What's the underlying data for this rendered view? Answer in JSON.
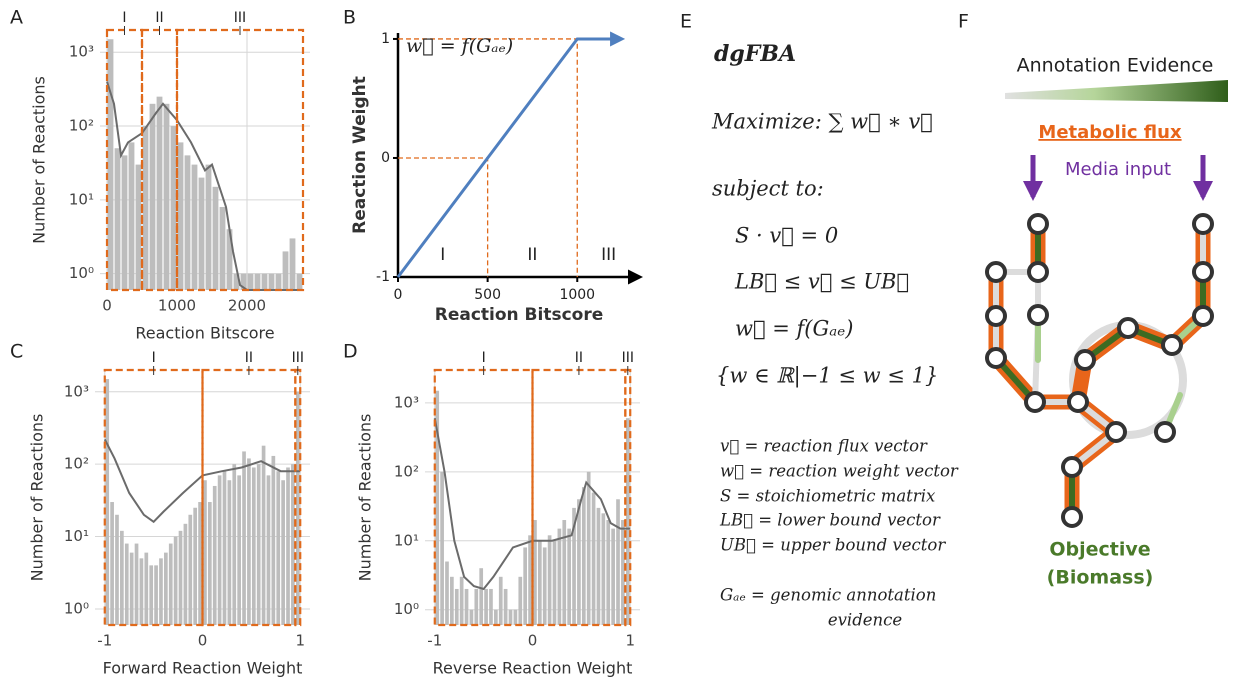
{
  "panel_labels": [
    "A",
    "B",
    "C",
    "D",
    "E",
    "F"
  ],
  "chart_data": [
    {
      "type": "histogram",
      "ylabel": "Number of Reactions",
      "xlabel": "Reaction Bitscore",
      "log_y": true,
      "grid": true,
      "color": "#bdbdbd",
      "curve_color": "#6b6b6b",
      "region_color": "#e06a1c",
      "xlim": [
        -100,
        2900
      ],
      "xticks": [
        0,
        1000,
        2000
      ],
      "ylim": [
        0.6,
        2000
      ],
      "yticks": [
        {
          "value": 1,
          "label": "10⁰"
        },
        {
          "value": 10,
          "label": "10¹"
        },
        {
          "value": 100,
          "label": "10²"
        },
        {
          "value": 1000,
          "label": "10³"
        }
      ],
      "bins": [
        0,
        100,
        200,
        300,
        400,
        500,
        600,
        700,
        800,
        900,
        1000,
        1100,
        1200,
        1300,
        1400,
        1500,
        1600,
        1700,
        1800,
        1900,
        2000,
        2100,
        2200,
        2300,
        2400,
        2500,
        2600,
        2700,
        2800
      ],
      "values": [
        1500,
        50,
        40,
        60,
        30,
        100,
        200,
        250,
        200,
        100,
        60,
        40,
        30,
        20,
        30,
        15,
        8,
        4,
        1,
        1,
        1,
        1,
        1,
        1,
        1,
        2,
        3,
        1
      ],
      "curve": {
        "x": [
          0,
          100,
          200,
          300,
          500,
          700,
          800,
          1000,
          1200,
          1400,
          1500,
          1700,
          1800,
          1900,
          2000,
          2500,
          2800
        ],
        "values": [
          400,
          200,
          40,
          60,
          80,
          150,
          200,
          120,
          60,
          25,
          30,
          8,
          2,
          0.7,
          0.6,
          0.6,
          0.6
        ]
      },
      "regions": [
        {
          "label": "I",
          "from": 0,
          "to": 500
        },
        {
          "label": "II",
          "from": 500,
          "to": 1000
        },
        {
          "label": "III",
          "from": 1000,
          "to": 2800
        }
      ]
    },
    {
      "type": "line",
      "ylabel": "Reaction Weight",
      "xlabel": "Reaction Bitscore",
      "annotation": "w⃗ = f(Gₐₑ)",
      "xlim": [
        0,
        1350
      ],
      "xticks": [
        0,
        500,
        1000
      ],
      "ylim": [
        -1,
        1.05
      ],
      "yticks": [
        -1,
        0,
        1
      ],
      "series": [
        {
          "color": "#4f7fbf",
          "x": [
            0,
            500,
            1000,
            1250
          ],
          "values": [
            -1,
            0,
            1,
            1
          ]
        }
      ],
      "guide_color": "#e06a1c",
      "regions": [
        {
          "label": "I",
          "from": 0,
          "to": 500
        },
        {
          "label": "II",
          "from": 500,
          "to": 1000
        },
        {
          "label": "III",
          "from": 1000,
          "to": 1350
        }
      ]
    },
    {
      "type": "histogram",
      "ylabel": "Number of Reactions",
      "xlabel": "Forward Reaction Weight",
      "log_y": true,
      "grid": true,
      "color": "#bdbdbd",
      "curve_color": "#6b6b6b",
      "region_color": "#e06a1c",
      "xlim": [
        -1.1,
        1.1
      ],
      "xticks": [
        -1,
        0,
        1
      ],
      "ylim": [
        0.6,
        2000
      ],
      "yticks": [
        {
          "value": 1,
          "label": "10⁰"
        },
        {
          "value": 10,
          "label": "10¹"
        },
        {
          "value": 100,
          "label": "10²"
        },
        {
          "value": 1000,
          "label": "10³"
        }
      ],
      "bins": [
        -1,
        -0.95,
        -0.9,
        -0.85,
        -0.8,
        -0.75,
        -0.7,
        -0.65,
        -0.6,
        -0.55,
        -0.5,
        -0.45,
        -0.4,
        -0.35,
        -0.3,
        -0.25,
        -0.2,
        -0.15,
        -0.1,
        -0.05,
        0,
        0.05,
        0.1,
        0.15,
        0.2,
        0.25,
        0.3,
        0.35,
        0.4,
        0.45,
        0.5,
        0.55,
        0.6,
        0.65,
        0.7,
        0.75,
        0.8,
        0.85,
        0.9,
        0.95,
        1
      ],
      "values": [
        1500,
        30,
        20,
        12,
        8,
        6,
        8,
        5,
        6,
        4,
        4,
        5,
        6,
        8,
        10,
        12,
        15,
        20,
        25,
        30,
        60,
        30,
        50,
        70,
        80,
        60,
        100,
        70,
        150,
        120,
        90,
        100,
        180,
        70,
        130,
        80,
        60,
        90,
        100,
        1000
      ],
      "curve": {
        "x": [
          -1,
          -0.9,
          -0.75,
          -0.6,
          -0.5,
          -0.4,
          -0.2,
          0,
          0.2,
          0.4,
          0.6,
          0.8,
          1
        ],
        "values": [
          220,
          120,
          40,
          20,
          16,
          22,
          40,
          70,
          80,
          90,
          110,
          80,
          80
        ]
      },
      "regions": [
        {
          "label": "I",
          "from": -1,
          "to": 0
        },
        {
          "label": "II",
          "from": 0,
          "to": 0.95
        },
        {
          "label": "III",
          "from": 0.95,
          "to": 1
        }
      ]
    },
    {
      "type": "histogram",
      "ylabel": "Number of Reactions",
      "xlabel": "Reverse Reaction Weight",
      "log_y": true,
      "grid": true,
      "color": "#bdbdbd",
      "curve_color": "#6b6b6b",
      "region_color": "#e06a1c",
      "xlim": [
        -1.1,
        1.1
      ],
      "xticks": [
        -1,
        0,
        1
      ],
      "ylim": [
        0.6,
        3000
      ],
      "yticks": [
        {
          "value": 1,
          "label": "10⁰"
        },
        {
          "value": 10,
          "label": "10¹"
        },
        {
          "value": 100,
          "label": "10²"
        },
        {
          "value": 1000,
          "label": "10³"
        }
      ],
      "bins": [
        -1,
        -0.95,
        -0.9,
        -0.85,
        -0.8,
        -0.75,
        -0.7,
        -0.65,
        -0.6,
        -0.55,
        -0.5,
        -0.45,
        -0.4,
        -0.35,
        -0.3,
        -0.25,
        -0.2,
        -0.15,
        -0.1,
        -0.05,
        0,
        0.05,
        0.1,
        0.15,
        0.2,
        0.25,
        0.3,
        0.35,
        0.4,
        0.45,
        0.5,
        0.55,
        0.6,
        0.65,
        0.7,
        0.75,
        0.8,
        0.85,
        0.9,
        0.95,
        1
      ],
      "values": [
        1500,
        100,
        5,
        3,
        2,
        3,
        2,
        1,
        2,
        4,
        2,
        2,
        1,
        3,
        2,
        1,
        1,
        3,
        8,
        12,
        20,
        10,
        8,
        12,
        10,
        15,
        20,
        15,
        30,
        40,
        60,
        100,
        50,
        30,
        25,
        20,
        15,
        40,
        20,
        600
      ],
      "curve": {
        "x": [
          -1,
          -0.9,
          -0.8,
          -0.7,
          -0.6,
          -0.5,
          -0.4,
          -0.2,
          0,
          0.2,
          0.4,
          0.5,
          0.55,
          0.7,
          0.8,
          0.9,
          1
        ],
        "values": [
          600,
          100,
          10,
          3,
          2.2,
          2,
          3,
          8,
          10,
          10,
          12,
          40,
          70,
          40,
          18,
          15,
          15
        ]
      },
      "regions": [
        {
          "label": "I",
          "from": -1,
          "to": 0
        },
        {
          "label": "II",
          "from": 0,
          "to": 0.95
        },
        {
          "label": "III",
          "from": 0.95,
          "to": 1
        }
      ]
    }
  ],
  "panel_e": {
    "title": "dgFBA",
    "equations": [
      "Maximize: ∑ w⃗ ∗ v⃗",
      "subject to:",
      "S · v⃗ = 0",
      "LB⃗ ≤ v⃗ ≤ UB⃗",
      "w⃗ = f(Gₐₑ)",
      "{w ∈ ℝ|−1 ≤ w ≤ 1}"
    ],
    "definitions": [
      "v⃗ = reaction flux vector",
      "w⃗ = reaction weight vector",
      "S = stoichiometric matrix",
      "LB⃗ = lower bound vector",
      "UB⃗ = upper bound vector",
      "Gₐₑ = genomic annotation",
      "evidence"
    ]
  },
  "panel_f": {
    "gradient_label": "Annotation Evidence",
    "flux_label": "Metabolic flux",
    "media_label": "Media input",
    "objective": [
      "Objective",
      "(Biomass)"
    ]
  }
}
